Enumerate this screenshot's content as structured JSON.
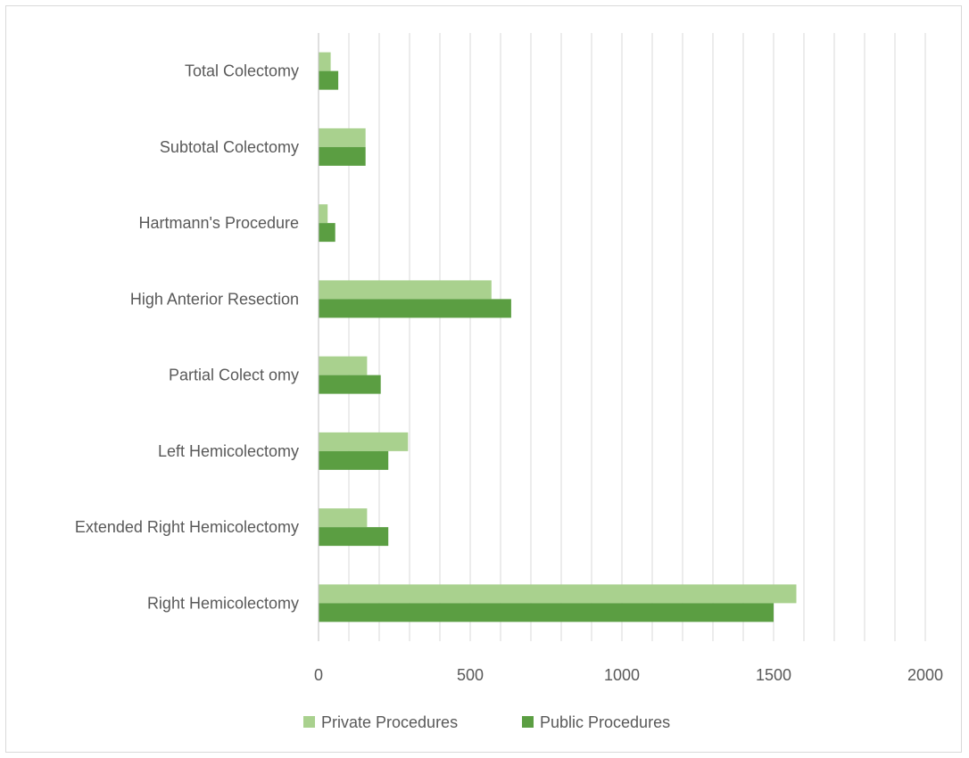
{
  "chart_data": {
    "type": "bar",
    "orientation": "horizontal",
    "categories": [
      "Total Colectomy",
      "Subtotal Colectomy",
      "Hartmann's Procedure",
      "High Anterior Resection",
      "Partial Colect omy",
      "Left Hemicolectomy",
      "Extended Right Hemicolectomy",
      "Right Hemicolectomy"
    ],
    "series": [
      {
        "name": "Private Procedures",
        "color": "#a9d18e",
        "values": [
          40,
          155,
          30,
          570,
          160,
          295,
          160,
          1575
        ]
      },
      {
        "name": "Public Procedures",
        "color": "#5b9e42",
        "values": [
          65,
          155,
          55,
          635,
          205,
          230,
          230,
          1500
        ]
      }
    ],
    "xlim": [
      0,
      2000
    ],
    "xticks": [
      "0",
      "500",
      "1000",
      "1500",
      "2000"
    ],
    "xtick_values": [
      0,
      500,
      1000,
      1500,
      2000
    ],
    "minor_grid_step": 100,
    "grid": true,
    "legend_position": "bottom",
    "gridline_color": "#d9d9d9",
    "axis_color": "#bfbfbf",
    "title": "",
    "xlabel": "",
    "ylabel": ""
  }
}
